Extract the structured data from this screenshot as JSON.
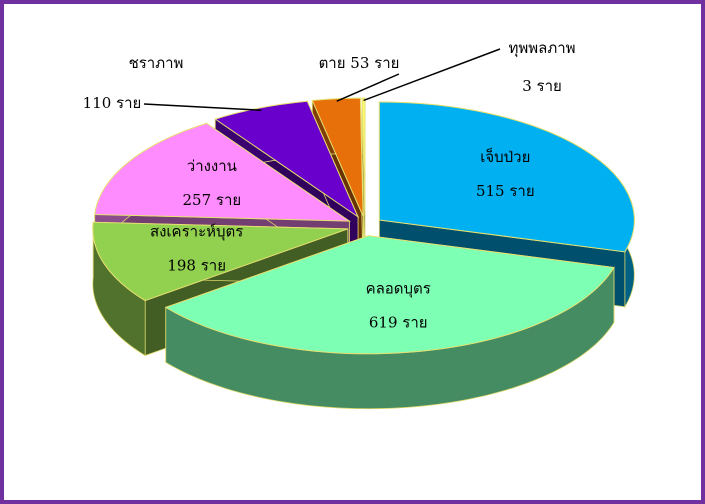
{
  "chart_data": {
    "type": "pie",
    "categories": [
      "เจ็บป่วย",
      "คลอดบุตร",
      "สงเคราะห์บุตร",
      "ว่างงาน",
      "ชราภาพ",
      "ตาย",
      "ทุพพลภาพ"
    ],
    "values": [
      515,
      619,
      198,
      257,
      110,
      53,
      3
    ],
    "value_labels": [
      "515 ราย",
      "619 ราย",
      "198 ราย",
      "257 ราย",
      "110 ราย",
      "53 ราย",
      "3 ราย"
    ],
    "colors": [
      "#00b0f0",
      "#7dffb4",
      "#92d050",
      "#ff8cff",
      "#6a00cc",
      "#e8700a",
      "#ffff70"
    ]
  }
}
